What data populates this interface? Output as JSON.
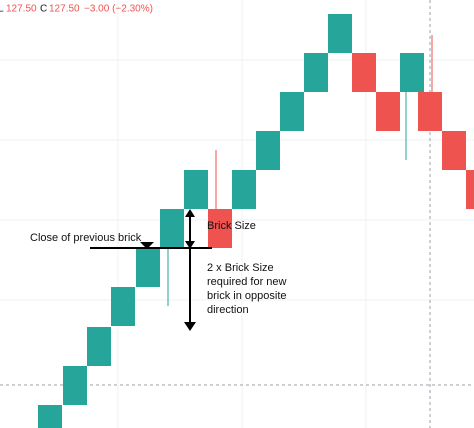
{
  "header": {
    "low_label": "L",
    "low": "127.50",
    "close_label": "C",
    "close": "127.50",
    "change": "−3.00 (−2.30%)"
  },
  "annotations": {
    "previous_close": "Close of previous brick",
    "brick_size": "Brick Size",
    "reversal": [
      "2 x Brick Size",
      "required for new",
      "brick in opposite",
      "direction"
    ]
  }
}
